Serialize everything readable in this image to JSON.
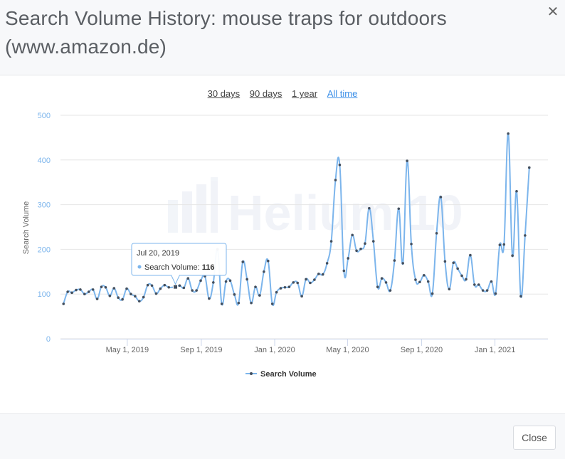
{
  "modal": {
    "title": "Search Volume History: mouse traps for outdoors (www.amazon.de)",
    "close_icon": "close-icon",
    "close_label": "Close"
  },
  "range": {
    "options": [
      "30 days",
      "90 days",
      "1 year",
      "All time"
    ],
    "active": "All time"
  },
  "watermark": "Helium 10",
  "tooltip": {
    "date": "Jul 20, 2019",
    "series": "Search Volume",
    "value": "116",
    "point_date": "2019-07-20"
  },
  "colors": {
    "series": "#7cb5ec",
    "marker": "#434f5e",
    "axis_text": "#7cb5ec",
    "active_link": "#3b8fe8"
  },
  "chart_data": {
    "type": "line",
    "title": "",
    "xlabel": "",
    "ylabel": "Search Volume",
    "ylim": [
      0,
      500
    ],
    "yticks": [
      0,
      100,
      200,
      300,
      400,
      500
    ],
    "xlim": [
      "2019-01-10",
      "2021-03-30"
    ],
    "xticks": [
      {
        "date": "2019-05-01",
        "label": "May 1, 2019"
      },
      {
        "date": "2019-09-01",
        "label": "Sep 1, 2019"
      },
      {
        "date": "2020-01-01",
        "label": "Jan 1, 2020"
      },
      {
        "date": "2020-05-01",
        "label": "May 1, 2020"
      },
      {
        "date": "2020-09-01",
        "label": "Sep 1, 2020"
      },
      {
        "date": "2021-01-01",
        "label": "Jan 1, 2021"
      }
    ],
    "grid": true,
    "legend": "bottom-center",
    "series": [
      {
        "name": "Search Volume",
        "points": [
          [
            "2019-01-15",
            78
          ],
          [
            "2019-01-22",
            105
          ],
          [
            "2019-01-29",
            103
          ],
          [
            "2019-02-05",
            109
          ],
          [
            "2019-02-12",
            110
          ],
          [
            "2019-02-19",
            100
          ],
          [
            "2019-02-26",
            105
          ],
          [
            "2019-03-05",
            110
          ],
          [
            "2019-03-12",
            89
          ],
          [
            "2019-03-19",
            116
          ],
          [
            "2019-03-26",
            115
          ],
          [
            "2019-04-02",
            96
          ],
          [
            "2019-04-09",
            113
          ],
          [
            "2019-04-16",
            92
          ],
          [
            "2019-04-23",
            88
          ],
          [
            "2019-04-30",
            112
          ],
          [
            "2019-05-07",
            100
          ],
          [
            "2019-05-14",
            95
          ],
          [
            "2019-05-21",
            84
          ],
          [
            "2019-05-28",
            93
          ],
          [
            "2019-06-04",
            120
          ],
          [
            "2019-06-11",
            119
          ],
          [
            "2019-06-18",
            101
          ],
          [
            "2019-06-25",
            112
          ],
          [
            "2019-07-02",
            120
          ],
          [
            "2019-07-09",
            115
          ],
          [
            "2019-07-20",
            116
          ],
          [
            "2019-07-27",
            119
          ],
          [
            "2019-08-03",
            114
          ],
          [
            "2019-08-10",
            135
          ],
          [
            "2019-08-17",
            108
          ],
          [
            "2019-08-24",
            108
          ],
          [
            "2019-08-31",
            130
          ],
          [
            "2019-09-07",
            140
          ],
          [
            "2019-09-14",
            90
          ],
          [
            "2019-09-21",
            126
          ],
          [
            "2019-09-28",
            200
          ],
          [
            "2019-10-05",
            78
          ],
          [
            "2019-10-12",
            128
          ],
          [
            "2019-10-19",
            130
          ],
          [
            "2019-10-26",
            99
          ],
          [
            "2019-11-02",
            80
          ],
          [
            "2019-11-09",
            172
          ],
          [
            "2019-11-16",
            133
          ],
          [
            "2019-11-23",
            80
          ],
          [
            "2019-11-30",
            116
          ],
          [
            "2019-12-07",
            97
          ],
          [
            "2019-12-14",
            150
          ],
          [
            "2019-12-21",
            174
          ],
          [
            "2019-12-28",
            78
          ],
          [
            "2020-01-04",
            104
          ],
          [
            "2020-01-11",
            113
          ],
          [
            "2020-01-18",
            115
          ],
          [
            "2020-01-25",
            116
          ],
          [
            "2020-02-01",
            126
          ],
          [
            "2020-02-08",
            125
          ],
          [
            "2020-02-15",
            95
          ],
          [
            "2020-02-22",
            133
          ],
          [
            "2020-02-29",
            125
          ],
          [
            "2020-03-07",
            132
          ],
          [
            "2020-03-14",
            145
          ],
          [
            "2020-03-21",
            144
          ],
          [
            "2020-03-28",
            169
          ],
          [
            "2020-04-04",
            218
          ],
          [
            "2020-04-11",
            355
          ],
          [
            "2020-04-18",
            389
          ],
          [
            "2020-04-25",
            152
          ],
          [
            "2020-05-02",
            180
          ],
          [
            "2020-05-09",
            232
          ],
          [
            "2020-05-16",
            197
          ],
          [
            "2020-05-23",
            201
          ],
          [
            "2020-05-30",
            213
          ],
          [
            "2020-06-06",
            292
          ],
          [
            "2020-06-13",
            218
          ],
          [
            "2020-06-20",
            116
          ],
          [
            "2020-06-27",
            135
          ],
          [
            "2020-07-04",
            126
          ],
          [
            "2020-07-11",
            108
          ],
          [
            "2020-07-18",
            175
          ],
          [
            "2020-07-25",
            291
          ],
          [
            "2020-08-01",
            169
          ],
          [
            "2020-08-08",
            398
          ],
          [
            "2020-08-15",
            212
          ],
          [
            "2020-08-22",
            132
          ],
          [
            "2020-08-29",
            127
          ],
          [
            "2020-09-05",
            142
          ],
          [
            "2020-09-12",
            128
          ],
          [
            "2020-09-19",
            101
          ],
          [
            "2020-09-26",
            236
          ],
          [
            "2020-10-03",
            317
          ],
          [
            "2020-10-10",
            173
          ],
          [
            "2020-10-17",
            111
          ],
          [
            "2020-10-24",
            170
          ],
          [
            "2020-10-31",
            157
          ],
          [
            "2020-11-07",
            141
          ],
          [
            "2020-11-14",
            133
          ],
          [
            "2020-11-21",
            187
          ],
          [
            "2020-11-28",
            121
          ],
          [
            "2020-12-05",
            121
          ],
          [
            "2020-12-12",
            108
          ],
          [
            "2020-12-19",
            108
          ],
          [
            "2020-12-26",
            128
          ],
          [
            "2021-01-02",
            101
          ],
          [
            "2021-01-09",
            210
          ],
          [
            "2021-01-16",
            211
          ],
          [
            "2021-01-23",
            459
          ],
          [
            "2021-01-30",
            186
          ],
          [
            "2021-02-06",
            330
          ],
          [
            "2021-02-13",
            95
          ],
          [
            "2021-02-20",
            231
          ],
          [
            "2021-02-27",
            383
          ]
        ]
      }
    ]
  }
}
